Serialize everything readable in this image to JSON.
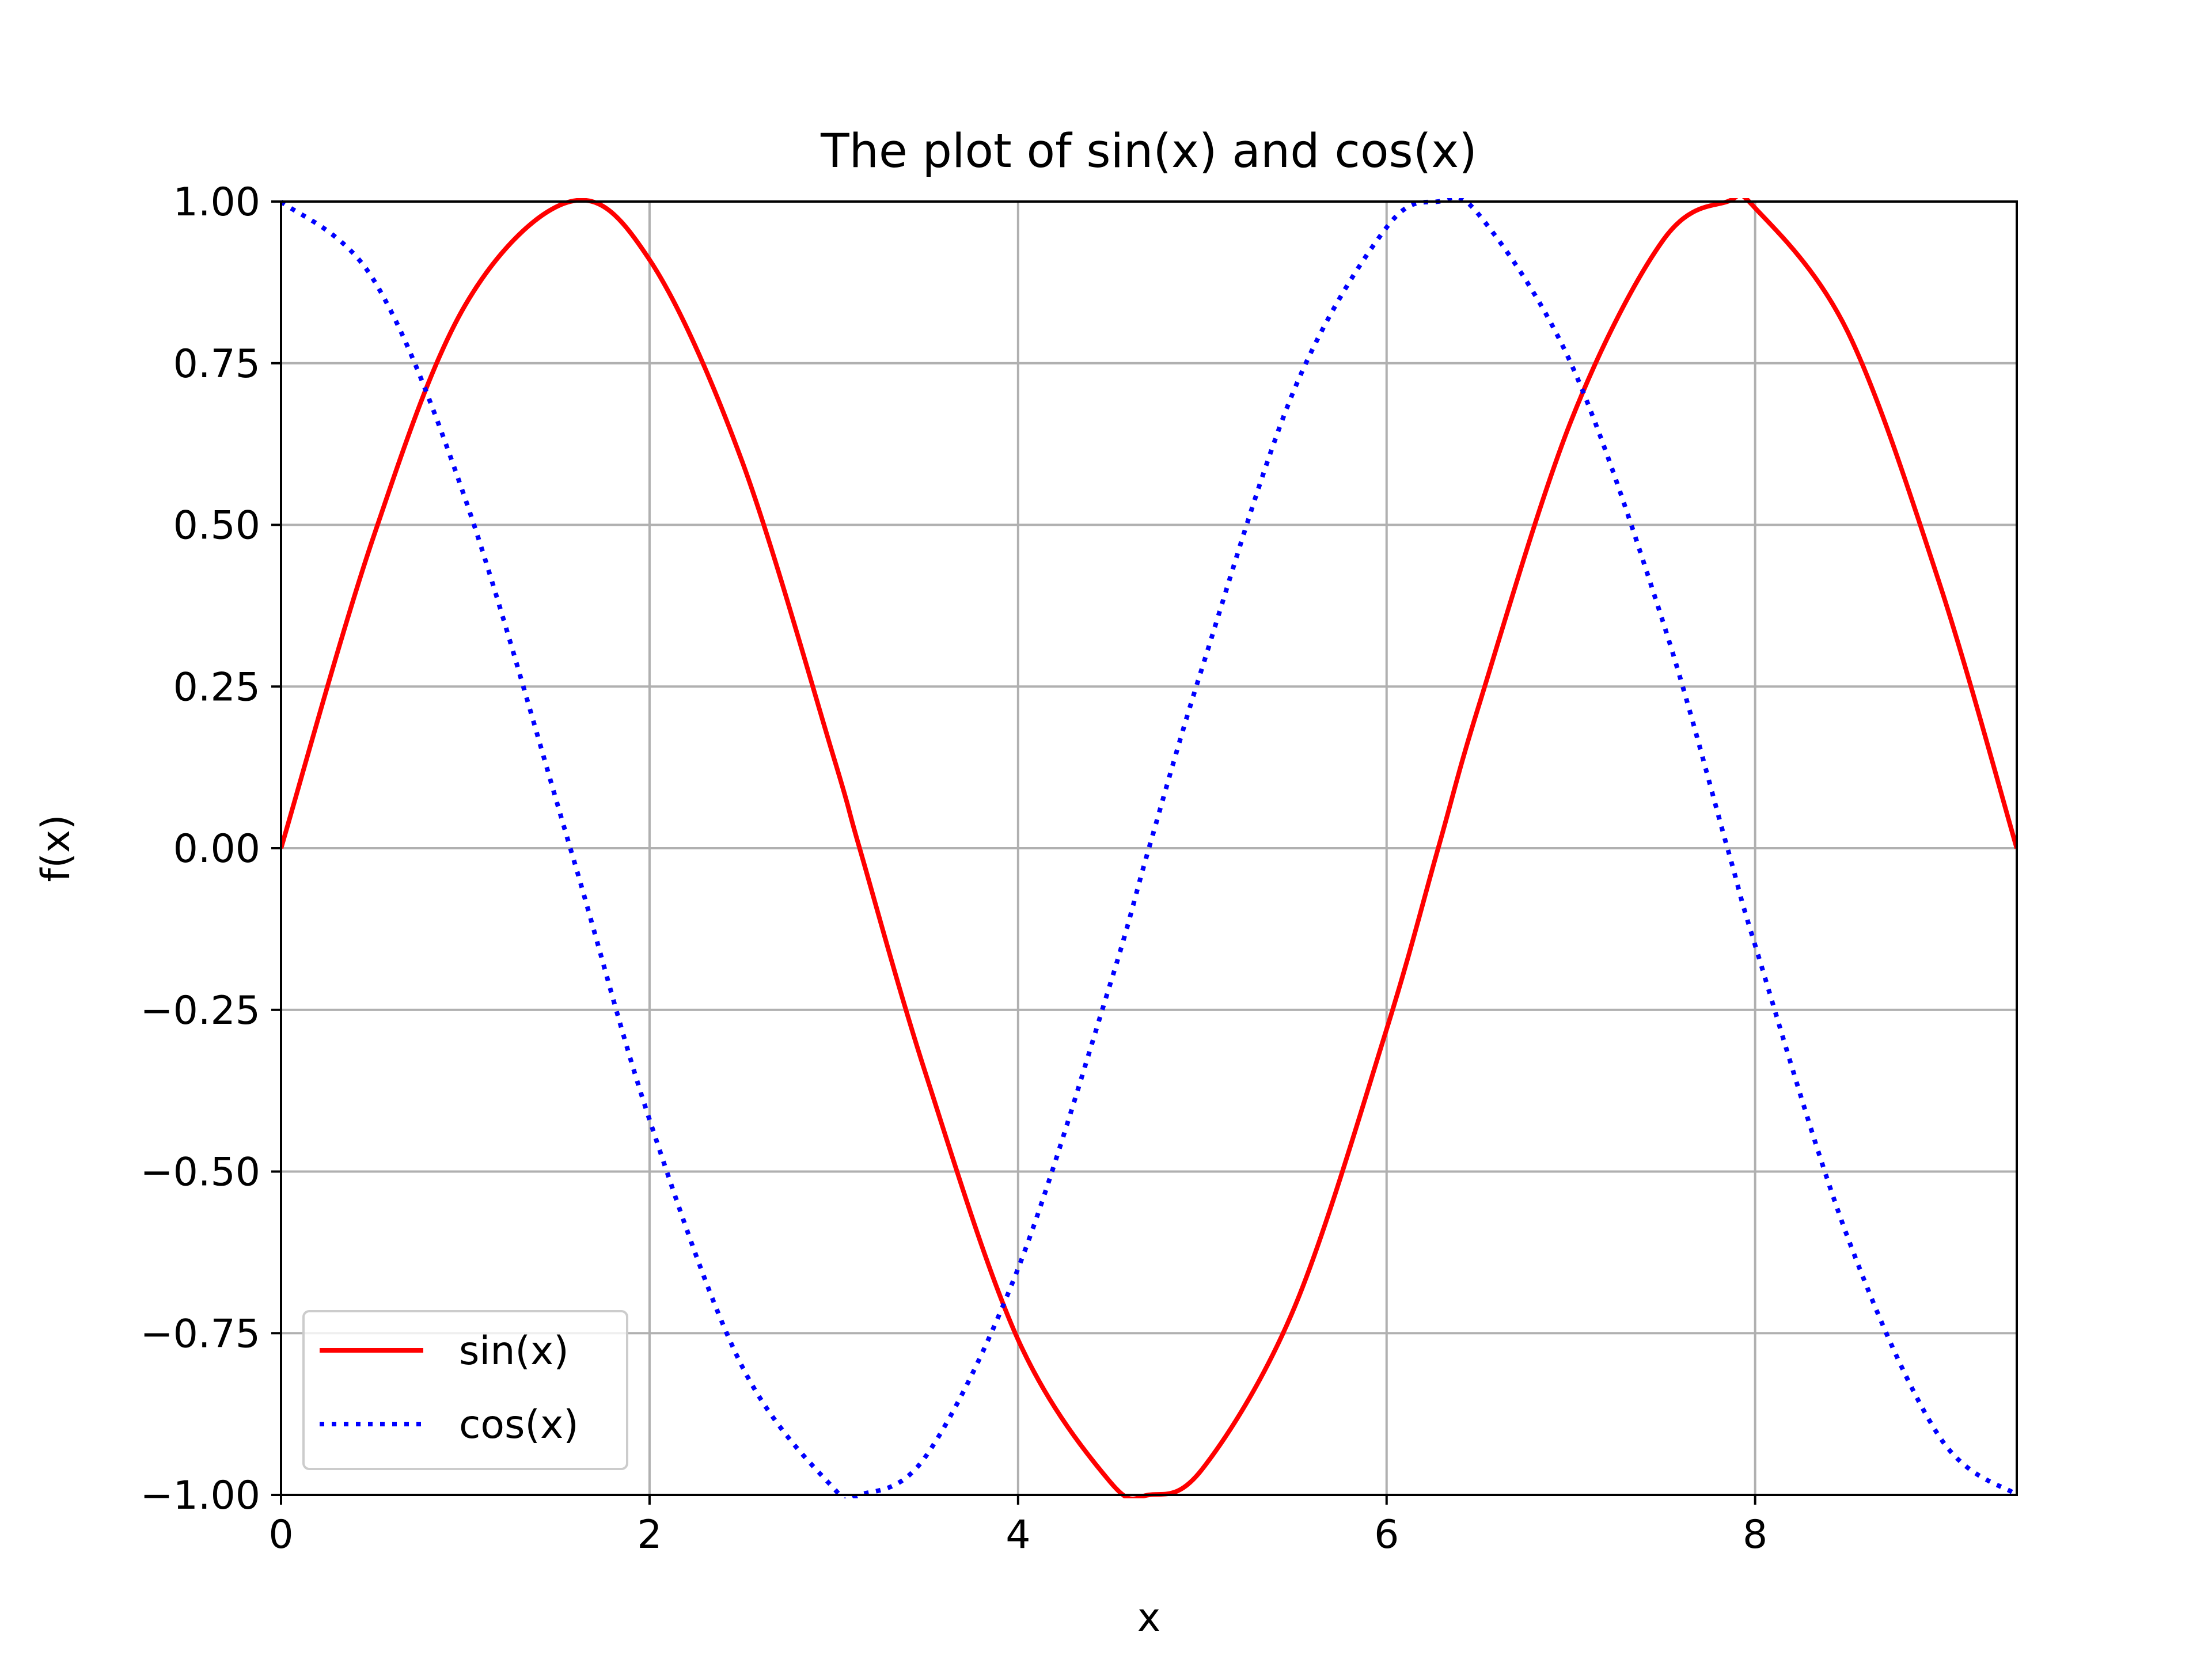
{
  "chart_data": {
    "type": "line",
    "title": "The plot of sin(x) and cos(x)",
    "xlabel": "x",
    "ylabel": "f(x)",
    "xlim": [
      0,
      9.42
    ],
    "ylim": [
      -1.0,
      1.0
    ],
    "xticks": [
      0,
      2,
      4,
      6,
      8
    ],
    "xtick_labels": [
      "0",
      "2",
      "4",
      "6",
      "8"
    ],
    "yticks": [
      -1.0,
      -0.75,
      -0.5,
      -0.25,
      0.0,
      0.25,
      0.5,
      0.75,
      1.0
    ],
    "ytick_labels": [
      "−1.00",
      "−0.75",
      "−0.50",
      "−0.25",
      "0.00",
      "0.25",
      "0.50",
      "0.75",
      "1.00"
    ],
    "grid": true,
    "legend_position": "lower-left",
    "series": [
      {
        "name": "sin(x)",
        "color": "#ff0000",
        "style": "solid",
        "x": [
          0.0,
          0.5,
          1.0,
          1.57,
          2.0,
          2.5,
          3.0,
          3.14,
          3.5,
          4.0,
          4.5,
          4.71,
          5.0,
          5.5,
          6.0,
          6.28,
          6.5,
          7.0,
          7.5,
          7.85,
          8.0,
          8.5,
          9.0,
          9.42
        ],
        "y": [
          0.0,
          0.48,
          0.84,
          1.0,
          0.91,
          0.6,
          0.14,
          0.0,
          -0.35,
          -0.76,
          -0.98,
          -1.0,
          -0.96,
          -0.71,
          -0.28,
          0.0,
          0.22,
          0.66,
          0.94,
          1.0,
          0.99,
          0.8,
          0.41,
          0.0
        ]
      },
      {
        "name": "cos(x)",
        "color": "#0000ff",
        "style": "dotted",
        "x": [
          0.0,
          0.5,
          1.0,
          1.57,
          2.0,
          2.5,
          3.0,
          3.14,
          3.5,
          4.0,
          4.5,
          4.71,
          5.0,
          5.5,
          6.0,
          6.28,
          6.5,
          7.0,
          7.5,
          7.85,
          8.0,
          8.5,
          9.0,
          9.42
        ],
        "y": [
          1.0,
          0.88,
          0.54,
          0.0,
          -0.42,
          -0.8,
          -0.99,
          -1.0,
          -0.94,
          -0.65,
          -0.21,
          0.0,
          0.28,
          0.71,
          0.96,
          1.0,
          0.98,
          0.75,
          0.35,
          0.0,
          -0.15,
          -0.6,
          -0.91,
          -1.0
        ]
      }
    ]
  }
}
